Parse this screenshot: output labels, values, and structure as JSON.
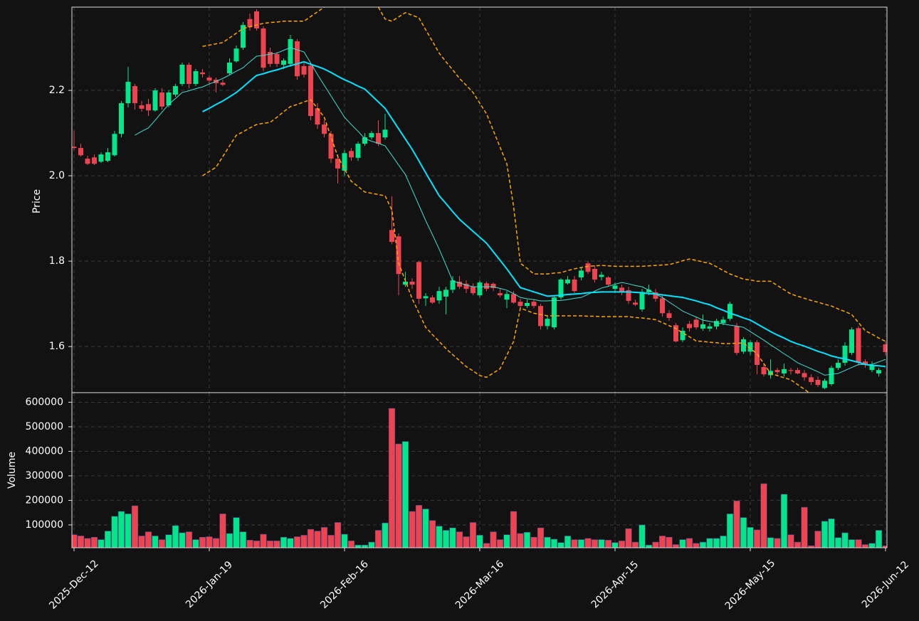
{
  "chart_data": [
    {
      "type": "candlestick",
      "ylabel": "Price",
      "up_color": "#00e68a",
      "down_color": "#ef4350",
      "grid": true,
      "ylim": [
        1.492,
        2.395
      ],
      "yticks": [
        1.6,
        1.8,
        {
          "value": 2,
          "label": "2.0"
        },
        2.2
      ],
      "open": [
        2.068,
        2.065,
        2.04,
        2.043,
        2.033,
        2.035,
        2.048,
        2.098,
        2.17,
        2.21,
        2.165,
        2.168,
        2.153,
        2.195,
        2.165,
        2.19,
        2.215,
        2.26,
        2.215,
        2.242,
        2.23,
        2.225,
        2.218,
        2.24,
        2.268,
        2.3,
        2.367,
        2.385,
        2.345,
        2.29,
        2.285,
        2.26,
        2.262,
        2.315,
        2.257,
        2.258,
        2.158,
        2.12,
        2.098,
        2.04,
        2.012,
        2.058,
        2.042,
        2.075,
        2.09,
        2.1,
        2.09,
        1.873,
        1.858,
        1.745,
        1.752,
        1.798,
        1.713,
        1.715,
        1.708,
        1.717,
        1.733,
        1.752,
        1.747,
        1.74,
        1.72,
        1.748,
        1.747,
        1.725,
        1.71,
        1.723,
        1.705,
        1.695,
        1.705,
        1.695,
        1.648,
        1.645,
        1.715,
        1.748,
        1.757,
        1.762,
        1.795,
        1.782,
        1.763,
        1.762,
        1.735,
        1.738,
        1.732,
        1.703,
        1.687,
        1.727,
        1.727,
        1.713,
        1.678,
        1.65,
        1.615,
        1.653,
        1.663,
        1.642,
        1.642,
        1.647,
        1.655,
        1.665,
        1.648,
        1.588,
        1.588,
        1.61,
        1.552,
        1.533,
        1.545,
        1.537,
        1.545,
        1.545,
        1.538,
        1.528,
        1.522,
        1.503,
        1.512,
        1.55,
        1.562,
        1.585,
        1.643,
        1.565,
        1.545,
        1.537,
        1.605
      ],
      "high": [
        2.105,
        2.075,
        2.047,
        2.05,
        2.055,
        2.065,
        2.105,
        2.175,
        2.255,
        2.215,
        2.175,
        2.18,
        2.205,
        2.205,
        2.2,
        2.215,
        2.265,
        2.265,
        2.25,
        2.25,
        2.235,
        2.23,
        2.225,
        2.275,
        2.305,
        2.36,
        2.38,
        2.39,
        2.35,
        2.3,
        2.29,
        2.275,
        2.33,
        2.32,
        2.265,
        2.265,
        2.17,
        2.13,
        2.105,
        2.05,
        2.06,
        2.065,
        2.08,
        2.1,
        2.105,
        2.13,
        2.145,
        1.952,
        1.865,
        1.775,
        1.76,
        1.8,
        1.725,
        1.72,
        1.74,
        1.74,
        1.765,
        1.765,
        1.755,
        1.748,
        1.755,
        1.752,
        1.75,
        1.735,
        1.73,
        1.73,
        1.712,
        1.71,
        1.71,
        1.7,
        1.672,
        1.72,
        1.76,
        1.765,
        1.765,
        1.785,
        1.8,
        1.79,
        1.775,
        1.765,
        1.75,
        1.745,
        1.74,
        1.71,
        1.735,
        1.745,
        1.735,
        1.72,
        1.685,
        1.655,
        1.645,
        1.66,
        1.67,
        1.675,
        1.655,
        1.665,
        1.67,
        1.705,
        1.655,
        1.622,
        1.615,
        1.615,
        1.56,
        1.57,
        1.55,
        1.56,
        1.55,
        1.55,
        1.545,
        1.535,
        1.53,
        1.525,
        1.555,
        1.57,
        1.61,
        1.645,
        1.648,
        1.57,
        1.565,
        1.55,
        1.612
      ],
      "low": [
        2.06,
        2.045,
        2.025,
        2.025,
        2.03,
        2.032,
        2.045,
        2.09,
        2.16,
        2.155,
        2.15,
        2.14,
        2.15,
        2.155,
        2.16,
        2.185,
        2.21,
        2.205,
        2.21,
        2.23,
        2.215,
        2.195,
        2.21,
        2.235,
        2.265,
        2.295,
        2.34,
        2.34,
        2.245,
        2.255,
        2.255,
        2.25,
        2.255,
        2.225,
        2.23,
        2.13,
        2.11,
        2.09,
        2.03,
        1.982,
        2.0,
        2.035,
        2.035,
        2.07,
        2.085,
        2.07,
        2.085,
        1.84,
        1.72,
        1.74,
        1.735,
        1.7,
        1.695,
        1.7,
        1.7,
        1.675,
        1.725,
        1.735,
        1.725,
        1.72,
        1.715,
        1.73,
        1.73,
        1.715,
        1.69,
        1.7,
        1.69,
        1.69,
        1.69,
        1.64,
        1.64,
        1.64,
        1.71,
        1.745,
        1.725,
        1.755,
        1.77,
        1.75,
        1.755,
        1.74,
        1.725,
        1.72,
        1.7,
        1.695,
        1.682,
        1.72,
        1.705,
        1.67,
        1.66,
        1.61,
        1.61,
        1.635,
        1.64,
        1.637,
        1.635,
        1.64,
        1.65,
        1.66,
        1.58,
        1.583,
        1.58,
        1.535,
        1.53,
        1.525,
        1.535,
        1.53,
        1.535,
        1.535,
        1.52,
        1.51,
        1.505,
        1.5,
        1.508,
        1.545,
        1.555,
        1.58,
        1.555,
        1.55,
        1.54,
        1.53,
        1.58
      ],
      "close": [
        2.065,
        2.048,
        2.028,
        2.028,
        2.05,
        2.055,
        2.098,
        2.17,
        2.22,
        2.17,
        2.157,
        2.153,
        2.2,
        2.162,
        2.195,
        2.21,
        2.26,
        2.215,
        2.245,
        2.238,
        2.223,
        2.217,
        2.213,
        2.265,
        2.298,
        2.353,
        2.348,
        2.345,
        2.253,
        2.262,
        2.262,
        2.27,
        2.32,
        2.233,
        2.237,
        2.14,
        2.12,
        2.098,
        2.04,
        2.017,
        2.053,
        2.043,
        2.075,
        2.09,
        2.1,
        2.075,
        2.108,
        1.845,
        1.77,
        1.752,
        1.745,
        1.712,
        1.718,
        1.703,
        1.73,
        1.733,
        1.755,
        1.74,
        1.735,
        1.725,
        1.75,
        1.735,
        1.737,
        1.72,
        1.723,
        1.703,
        1.695,
        1.702,
        1.695,
        1.648,
        1.665,
        1.715,
        1.757,
        1.757,
        1.73,
        1.778,
        1.775,
        1.757,
        1.768,
        1.745,
        1.743,
        1.728,
        1.707,
        1.698,
        1.728,
        1.733,
        1.712,
        1.678,
        1.667,
        1.612,
        1.637,
        1.643,
        1.645,
        1.652,
        1.647,
        1.66,
        1.663,
        1.7,
        1.585,
        1.617,
        1.61,
        1.557,
        1.535,
        1.543,
        1.54,
        1.547,
        1.543,
        1.537,
        1.528,
        1.517,
        1.51,
        1.52,
        1.55,
        1.562,
        1.602,
        1.64,
        1.562,
        1.557,
        1.557,
        1.545,
        1.587
      ],
      "series": [
        {
          "color": "#40e0d0",
          "linewidth": 1,
          "linestyle": "solid",
          "values": [
            null,
            null,
            null,
            null,
            null,
            null,
            null,
            null,
            null,
            2.095,
            2.104,
            2.112,
            2.13,
            2.149,
            2.167,
            2.181,
            2.195,
            2.199,
            2.204,
            2.208,
            2.215,
            2.221,
            2.228,
            2.236,
            2.245,
            2.253,
            2.267,
            2.28,
            2.282,
            2.285,
            2.287,
            2.294,
            2.3,
            2.295,
            2.29,
            2.264,
            2.237,
            2.212,
            2.187,
            2.162,
            2.137,
            2.12,
            2.104,
            2.087,
            2.081,
            2.076,
            2.07,
            2.048,
            2.025,
            2.003,
            1.967,
            1.931,
            1.895,
            1.862,
            1.828,
            1.791,
            1.753,
            1.749,
            1.744,
            1.74,
            1.74,
            1.74,
            1.74,
            1.736,
            1.732,
            1.724,
            1.715,
            1.712,
            1.71,
            1.707,
            1.707,
            1.708,
            1.708,
            1.71,
            1.713,
            1.715,
            1.722,
            1.73,
            1.737,
            1.741,
            1.746,
            1.75,
            1.747,
            1.743,
            1.74,
            1.732,
            1.723,
            1.715,
            1.704,
            1.694,
            1.683,
            1.676,
            1.669,
            1.662,
            1.659,
            1.656,
            1.653,
            1.65,
            1.648,
            1.645,
            1.635,
            1.625,
            1.615,
            1.604,
            1.594,
            1.583,
            1.573,
            1.562,
            1.555,
            1.548,
            1.541,
            1.533,
            1.535,
            1.537,
            1.544,
            1.551,
            1.558,
            1.558,
            1.558,
            1.564,
            1.57
          ]
        },
        {
          "color": "#00e5ff",
          "linewidth": 2,
          "linestyle": "solid",
          "values": [
            null,
            null,
            null,
            null,
            null,
            null,
            null,
            null,
            null,
            null,
            null,
            null,
            null,
            null,
            null,
            null,
            null,
            null,
            null,
            2.15,
            2.158,
            2.167,
            2.175,
            2.185,
            2.195,
            2.208,
            2.222,
            2.235,
            2.239,
            2.244,
            2.248,
            2.253,
            2.258,
            2.262,
            2.267,
            2.261,
            2.256,
            2.25,
            2.242,
            2.233,
            2.225,
            2.218,
            2.21,
            2.203,
            2.188,
            2.173,
            2.158,
            2.134,
            2.11,
            2.086,
            2.062,
            2.035,
            2.007,
            1.98,
            1.953,
            1.935,
            1.916,
            1.898,
            1.884,
            1.87,
            1.856,
            1.842,
            1.822,
            1.802,
            1.782,
            1.76,
            1.738,
            1.733,
            1.728,
            1.723,
            1.718,
            1.719,
            1.72,
            1.722,
            1.723,
            1.724,
            1.726,
            1.727,
            1.728,
            1.728,
            1.728,
            1.728,
            1.728,
            1.727,
            1.726,
            1.724,
            1.723,
            1.721,
            1.719,
            1.717,
            1.715,
            1.711,
            1.707,
            1.702,
            1.698,
            1.691,
            1.685,
            1.678,
            1.673,
            1.667,
            1.662,
            1.653,
            1.644,
            1.635,
            1.627,
            1.62,
            1.612,
            1.606,
            1.601,
            1.595,
            1.589,
            1.584,
            1.578,
            1.574,
            1.571,
            1.567,
            1.563,
            1.558,
            1.556,
            1.555,
            1.553
          ]
        },
        {
          "color": "#ffa500",
          "linewidth": 1.5,
          "linestyle": "dashed",
          "values": [
            null,
            null,
            null,
            null,
            null,
            null,
            null,
            null,
            null,
            null,
            null,
            null,
            null,
            null,
            null,
            null,
            null,
            null,
            null,
            2.303,
            2.306,
            2.309,
            2.312,
            2.323,
            2.334,
            2.345,
            2.349,
            2.353,
            2.357,
            2.359,
            2.36,
            2.362,
            2.362,
            2.362,
            2.362,
            2.373,
            2.384,
            2.395,
            2.413,
            2.43,
            2.435,
            2.44,
            2.43,
            2.42,
            2.408,
            2.395,
            2.367,
            2.362,
            2.372,
            2.382,
            2.376,
            2.37,
            2.342,
            2.315,
            2.287,
            2.267,
            2.248,
            2.228,
            2.212,
            2.195,
            2.17,
            2.145,
            2.106,
            2.067,
            2.028,
            1.928,
            1.795,
            1.783,
            1.77,
            1.77,
            1.77,
            1.772,
            1.773,
            1.778,
            1.782,
            1.785,
            1.788,
            1.789,
            1.79,
            1.789,
            1.788,
            1.788,
            1.788,
            1.788,
            1.788,
            1.789,
            1.79,
            1.791,
            1.792,
            1.796,
            1.801,
            1.805,
            1.802,
            1.798,
            1.795,
            1.787,
            1.778,
            1.77,
            1.764,
            1.758,
            1.756,
            1.753,
            1.753,
            1.753,
            1.743,
            1.733,
            1.723,
            1.718,
            1.713,
            1.708,
            1.704,
            1.699,
            1.695,
            1.688,
            1.682,
            1.675,
            1.656,
            1.637,
            1.629,
            1.62,
            1.612
          ]
        },
        {
          "color": "#ffa500",
          "linewidth": 1.5,
          "linestyle": "dashed",
          "values": [
            null,
            null,
            null,
            null,
            null,
            null,
            null,
            null,
            null,
            null,
            null,
            null,
            null,
            null,
            null,
            null,
            null,
            null,
            null,
            2.0,
            2.01,
            2.02,
            2.045,
            2.07,
            2.095,
            2.103,
            2.112,
            2.12,
            2.123,
            2.125,
            2.137,
            2.15,
            2.162,
            2.167,
            2.173,
            2.178,
            2.158,
            2.137,
            2.091,
            2.045,
            2.016,
            1.987,
            1.975,
            1.962,
            1.959,
            1.956,
            1.953,
            1.92,
            1.795,
            1.754,
            1.712,
            1.679,
            1.645,
            1.628,
            1.612,
            1.595,
            1.581,
            1.567,
            1.553,
            1.543,
            1.532,
            1.528,
            1.538,
            1.548,
            1.58,
            1.612,
            1.69,
            1.684,
            1.678,
            1.675,
            1.672,
            1.672,
            1.672,
            1.672,
            1.672,
            1.672,
            1.671,
            1.671,
            1.67,
            1.67,
            1.67,
            1.67,
            1.67,
            1.668,
            1.667,
            1.665,
            1.663,
            1.656,
            1.649,
            1.642,
            1.632,
            1.623,
            1.613,
            1.612,
            1.61,
            1.609,
            1.607,
            1.607,
            1.608,
            1.608,
            1.596,
            1.583,
            1.56,
            1.537,
            1.532,
            1.527,
            1.522,
            1.511,
            1.5,
            1.488,
            1.475,
            1.474,
            1.474,
            1.473,
            1.476,
            1.48,
            1.483,
            1.485,
            1.487,
            1.49,
            1.492
          ]
        }
      ]
    },
    {
      "type": "bar",
      "ylabel": "Volume",
      "grid": true,
      "ylim": [
        7000,
        639000
      ],
      "yticks": [
        100000,
        200000,
        300000,
        400000,
        500000,
        600000
      ],
      "xticks": [
        {
          "value": 0,
          "label": "2025-Dec-12"
        },
        {
          "value": 20,
          "label": "2026-Jan-19"
        },
        {
          "value": 40,
          "label": "2026-Feb-16"
        },
        {
          "value": 60,
          "label": "2026-Mar-16"
        },
        {
          "value": 80,
          "label": "2026-Apr-15"
        },
        {
          "value": 100,
          "label": "2026-May-15"
        },
        {
          "value": 120,
          "label": "2026-Jun-12"
        }
      ],
      "values": [
        60000,
        55000,
        45000,
        50000,
        40000,
        75000,
        135000,
        155000,
        145000,
        178000,
        55000,
        72000,
        55000,
        40000,
        60000,
        97000,
        68000,
        72000,
        40000,
        50000,
        52000,
        45000,
        145000,
        65000,
        130000,
        72000,
        38000,
        35000,
        62000,
        35000,
        35000,
        50000,
        45000,
        52000,
        58000,
        82000,
        75000,
        90000,
        58000,
        110000,
        62000,
        35000,
        18000,
        18000,
        30000,
        78000,
        108000,
        575000,
        430000,
        440000,
        155000,
        180000,
        165000,
        118000,
        95000,
        78000,
        88000,
        72000,
        52000,
        110000,
        58000,
        25000,
        72000,
        40000,
        60000,
        155000,
        65000,
        70000,
        50000,
        88000,
        50000,
        42000,
        28000,
        55000,
        40000,
        40000,
        45000,
        40000,
        40000,
        38000,
        28000,
        35000,
        85000,
        30000,
        100000,
        18000,
        30000,
        55000,
        50000,
        20000,
        40000,
        45000,
        25000,
        30000,
        45000,
        45000,
        55000,
        145000,
        198000,
        130000,
        90000,
        80000,
        268000,
        48000,
        45000,
        225000,
        60000,
        30000,
        172000,
        15000,
        75000,
        115000,
        125000,
        48000,
        68000,
        40000,
        40000,
        20000,
        25000,
        78000,
        15000
      ]
    }
  ]
}
